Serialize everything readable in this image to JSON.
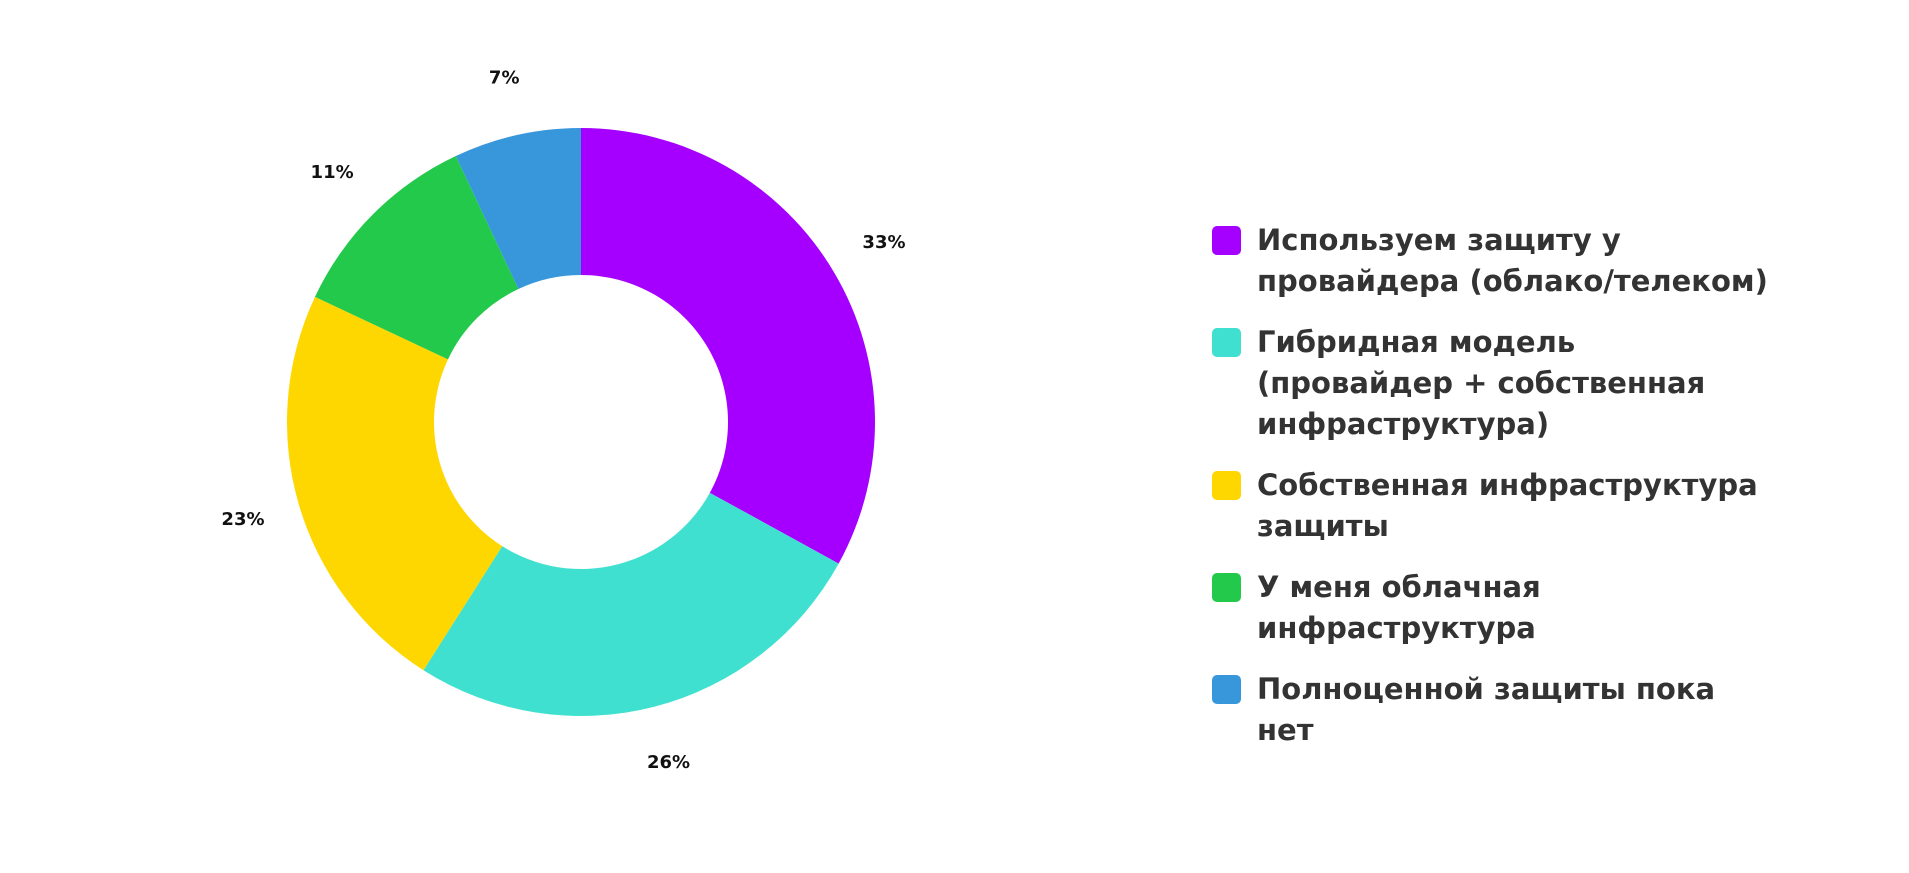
{
  "chart_data": {
    "type": "pie",
    "categories": [
      "Используем защиту у провайдера (облако/телеком)",
      "Гибридная модель (провайдер + собственная инфраструктура)",
      "Собственная инфраструктура защиты",
      "У меня облачная инфраструктура",
      "Полноценной защиты пока нет"
    ],
    "values": [
      33,
      26,
      23,
      11,
      7
    ],
    "value_labels": [
      "33%",
      "26%",
      "23%",
      "11%",
      "7%"
    ],
    "colors": [
      "#a500ff",
      "#40e0d0",
      "#ffd700",
      "#22c94b",
      "#3897db"
    ],
    "legend": "right"
  }
}
